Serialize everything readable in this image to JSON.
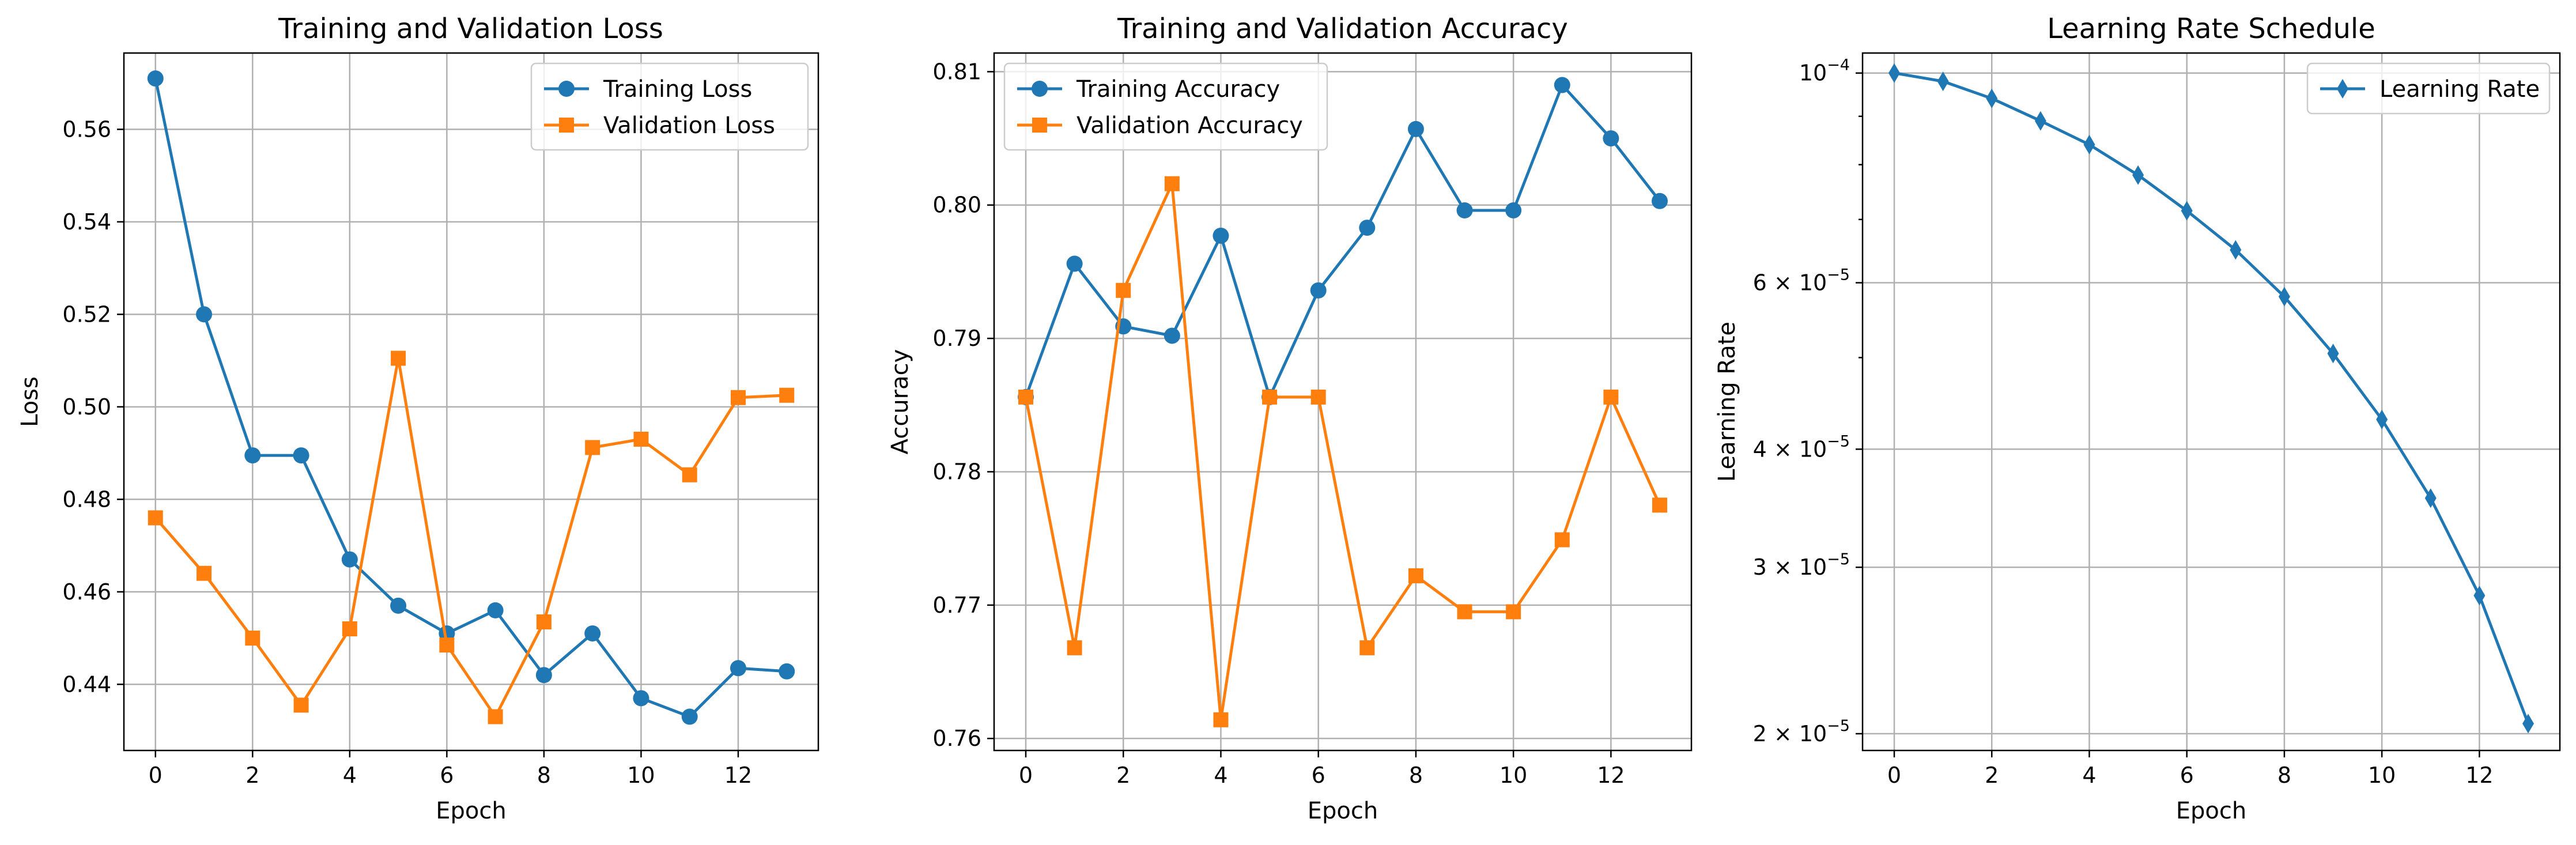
{
  "chart_data": [
    {
      "type": "line",
      "title": "Training and Validation Loss",
      "xlabel": "Epoch",
      "ylabel": "Loss",
      "x": [
        0,
        1,
        2,
        3,
        4,
        5,
        6,
        7,
        8,
        9,
        10,
        11,
        12,
        13
      ],
      "xlim": [
        -0.65,
        13.65
      ],
      "ylim": [
        0.4257,
        0.5765
      ],
      "xticks": [
        0,
        2,
        4,
        6,
        8,
        10,
        12
      ],
      "xtick_labels": [
        "0",
        "2",
        "4",
        "6",
        "8",
        "10",
        "12"
      ],
      "yticks": [
        0.44,
        0.46,
        0.48,
        0.5,
        0.52,
        0.54,
        0.56
      ],
      "ytick_labels": [
        "0.44",
        "0.46",
        "0.48",
        "0.50",
        "0.52",
        "0.54",
        "0.56"
      ],
      "yscale": "linear",
      "grid": true,
      "legend_position": "top-right",
      "series": [
        {
          "name": "Training Loss",
          "color": "#1f77b4",
          "marker": "circle",
          "values": [
            0.571,
            0.52,
            0.4895,
            0.4895,
            0.467,
            0.457,
            0.451,
            0.456,
            0.442,
            0.451,
            0.437,
            0.433,
            0.4435,
            0.4428
          ]
        },
        {
          "name": "Validation Loss",
          "color": "#ff7f0e",
          "marker": "square",
          "values": [
            0.476,
            0.464,
            0.45,
            0.4355,
            0.452,
            0.5105,
            0.4485,
            0.433,
            0.4535,
            0.4912,
            0.493,
            0.4853,
            0.502,
            0.5025
          ]
        }
      ]
    },
    {
      "type": "line",
      "title": "Training and Validation Accuracy",
      "xlabel": "Epoch",
      "ylabel": "Accuracy",
      "x": [
        0,
        1,
        2,
        3,
        4,
        5,
        6,
        7,
        8,
        9,
        10,
        11,
        12,
        13
      ],
      "xlim": [
        -0.65,
        13.65
      ],
      "ylim": [
        0.7591,
        0.8114
      ],
      "xticks": [
        0,
        2,
        4,
        6,
        8,
        10,
        12
      ],
      "xtick_labels": [
        "0",
        "2",
        "4",
        "6",
        "8",
        "10",
        "12"
      ],
      "yticks": [
        0.76,
        0.77,
        0.78,
        0.79,
        0.8,
        0.81
      ],
      "ytick_labels": [
        "0.76",
        "0.77",
        "0.78",
        "0.79",
        "0.80",
        "0.81"
      ],
      "yscale": "linear",
      "grid": true,
      "legend_position": "top-left",
      "series": [
        {
          "name": "Training Accuracy",
          "color": "#1f77b4",
          "marker": "circle",
          "values": [
            0.7856,
            0.7956,
            0.7909,
            0.7902,
            0.7977,
            0.7856,
            0.7936,
            0.7983,
            0.8057,
            0.7996,
            0.7996,
            0.809,
            0.805,
            0.8003
          ]
        },
        {
          "name": "Validation Accuracy",
          "color": "#ff7f0e",
          "marker": "square",
          "values": [
            0.7856,
            0.7668,
            0.7936,
            0.8016,
            0.7614,
            0.7856,
            0.7856,
            0.7668,
            0.7722,
            0.7695,
            0.7695,
            0.7749,
            0.7856,
            0.7775
          ]
        }
      ]
    },
    {
      "type": "line",
      "title": "Learning Rate Schedule",
      "xlabel": "Epoch",
      "ylabel": "Learning Rate",
      "x": [
        0,
        1,
        2,
        3,
        4,
        5,
        6,
        7,
        8,
        9,
        10,
        11,
        12,
        13
      ],
      "xlim": [
        -0.65,
        13.65
      ],
      "ylim": [
        1.92e-05,
        0.000105
      ],
      "xticks": [
        0,
        2,
        4,
        6,
        8,
        10,
        12
      ],
      "xtick_labels": [
        "0",
        "2",
        "4",
        "6",
        "8",
        "10",
        "12"
      ],
      "yscale": "log",
      "yticks": [
        0.0001,
        6e-05,
        4e-05,
        3e-05,
        2e-05
      ],
      "ytick_labels": [
        {
          "base": "10",
          "exp": "−4",
          "coef": ""
        },
        {
          "base": "10",
          "exp": "−5",
          "coef": "6 × "
        },
        {
          "base": "10",
          "exp": "−5",
          "coef": "4 × "
        },
        {
          "base": "10",
          "exp": "−5",
          "coef": "3 × "
        },
        {
          "base": "10",
          "exp": "−5",
          "coef": "2 × "
        }
      ],
      "minor_yticks": [
        9e-05,
        8e-05,
        7e-05,
        5e-05
      ],
      "grid": true,
      "legend_position": "top-right",
      "series": [
        {
          "name": "Learning Rate",
          "color": "#1f77b4",
          "marker": "thin_diamond",
          "values": [
            0.0001,
            9.8e-05,
            9.4e-05,
            8.9e-05,
            8.4e-05,
            7.8e-05,
            7.15e-05,
            6.5e-05,
            5.8e-05,
            5.05e-05,
            4.3e-05,
            3.55e-05,
            2.8e-05,
            2.05e-05
          ]
        }
      ]
    }
  ]
}
